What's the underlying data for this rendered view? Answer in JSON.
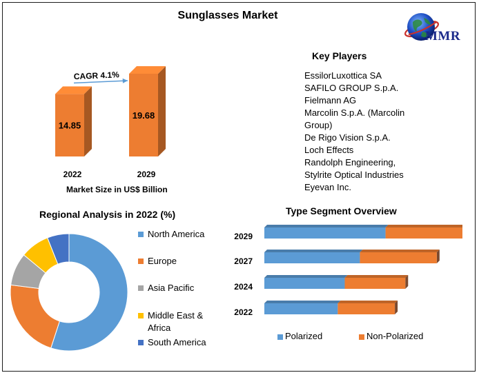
{
  "title": "Sunglasses Market",
  "logo": {
    "text": "MMR",
    "icon": "globe-icon"
  },
  "market_size": {
    "cagr_label": "CAGR 4.1%",
    "xlabel": "Market Size in US$ Billion"
  },
  "key_players": {
    "title": "Key Players",
    "items": [
      "EssilorLuxottica SA",
      "SAFILO GROUP S.p.A.",
      "Fielmann AG",
      "Marcolin S.p.A. (Marcolin",
      "Group)",
      "De Rigo Vision S.p.A.",
      "Loch Effects",
      "Randolph Engineering,",
      "Stylrite Optical Industries",
      "Eyevan Inc."
    ]
  },
  "regional": {
    "title": "Regional Analysis in 2022 (%)"
  },
  "type_segment": {
    "title": "Type Segment Overview"
  },
  "chart_data": [
    {
      "type": "bar",
      "categories": [
        "2022",
        "2029"
      ],
      "values": [
        14.85,
        19.68
      ],
      "data_labels": [
        "14.85",
        "19.68"
      ],
      "annotation": "CAGR 4.1%",
      "xlabel": "Market Size in US$ Billion",
      "color": "#ed7d31",
      "three_d": true
    },
    {
      "type": "pie",
      "donut": true,
      "title": "Regional Analysis in 2022 (%)",
      "labels": [
        "North America",
        "Europe",
        "Asia Pacific",
        "Middle East & Africa",
        "South America"
      ],
      "legend_lines": [
        [
          "North America"
        ],
        [
          "Europe"
        ],
        [
          "Asia Pacific"
        ],
        [
          "Middle East &",
          "Africa"
        ],
        [
          "South America"
        ]
      ],
      "values": [
        55,
        22,
        9,
        8,
        6
      ],
      "colors": [
        "#5b9bd5",
        "#ed7d31",
        "#a5a5a5",
        "#ffc000",
        "#4472c4"
      ],
      "legend": "right"
    },
    {
      "type": "bar",
      "orientation": "horizontal",
      "stacked": true,
      "title": "Type Segment Overview",
      "categories": [
        "2029",
        "2027",
        "2024",
        "2022"
      ],
      "series": [
        {
          "name": "Polarized",
          "values": [
            10.4,
            8.2,
            6.9,
            6.3
          ],
          "color": "#5b9bd5"
        },
        {
          "name": "Non-Polarized",
          "values": [
            6.6,
            6.6,
            5.2,
            4.9
          ],
          "color": "#ed7d31"
        }
      ],
      "xlim": [
        0,
        17
      ],
      "legend": "bottom"
    }
  ]
}
